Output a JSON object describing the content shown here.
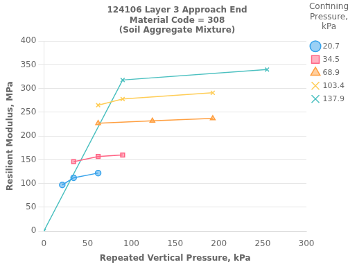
{
  "chart_data": {
    "type": "line",
    "title": "124106 Layer 3 Approach End\nMaterial Code = 308\n(Soil Aggregate Mixture)",
    "xlabel": "Repeated Vertical Pressure, kPa",
    "ylabel": "Resilient Modulus, MPa",
    "legend_title": "Confining\nPressure,\nkPa",
    "legend": "right",
    "grid": "y",
    "xlim": [
      0,
      300
    ],
    "ylim": [
      0,
      400
    ],
    "xticks": [
      0,
      50,
      100,
      150,
      200,
      250,
      300
    ],
    "yticks": [
      0,
      50,
      100,
      150,
      200,
      250,
      300,
      350,
      400
    ],
    "series": [
      {
        "name": "20.7",
        "x": [
          21,
          34,
          62
        ],
        "values": [
          97,
          112,
          122
        ],
        "marker": "circle"
      },
      {
        "name": "34.5",
        "x": [
          34,
          62,
          90
        ],
        "values": [
          146,
          157,
          160
        ],
        "marker": "square"
      },
      {
        "name": "68.9",
        "x": [
          62,
          124,
          193
        ],
        "values": [
          227,
          232,
          237
        ],
        "marker": "triangle"
      },
      {
        "name": "103.4",
        "x": [
          62,
          90,
          193
        ],
        "values": [
          265,
          278,
          291
        ],
        "marker": "x"
      },
      {
        "name": "137.9",
        "x": [
          0,
          90,
          255
        ],
        "values": [
          0,
          318,
          340
        ],
        "marker": "x"
      }
    ]
  }
}
